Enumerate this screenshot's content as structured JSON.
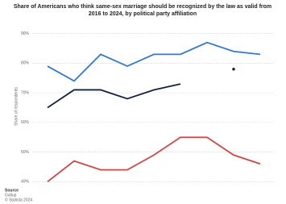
{
  "chart_data": {
    "type": "line",
    "title": "Share of Americans who think same-sex marriage should be recognized by the law as valid from 2016 to 2024, by political party affiliation",
    "y_label": "Share of respondents",
    "series": [
      {
        "color": "#2f7ad6",
        "values": [
          79,
          74,
          83,
          79,
          83,
          83,
          87,
          84,
          83
        ]
      },
      {
        "color": "#13233f",
        "values": [
          65,
          71,
          71,
          68,
          71,
          73,
          null,
          78,
          null
        ]
      },
      {
        "color": "#d94343",
        "values": [
          40,
          47,
          44,
          44,
          49,
          55,
          55,
          49,
          46
        ]
      }
    ],
    "ylim": [
      39,
      91
    ],
    "yticks": [
      {
        "value": 90,
        "label": "90%"
      },
      {
        "value": 80,
        "label": "80%"
      },
      {
        "value": 70,
        "label": "70%"
      },
      {
        "value": 60,
        "label": "60%"
      },
      {
        "value": 50,
        "label": "50%"
      },
      {
        "value": 40,
        "label": "40%"
      }
    ],
    "grid": true,
    "source": [
      "Source",
      "Gallup",
      "© Statista 2024"
    ]
  }
}
